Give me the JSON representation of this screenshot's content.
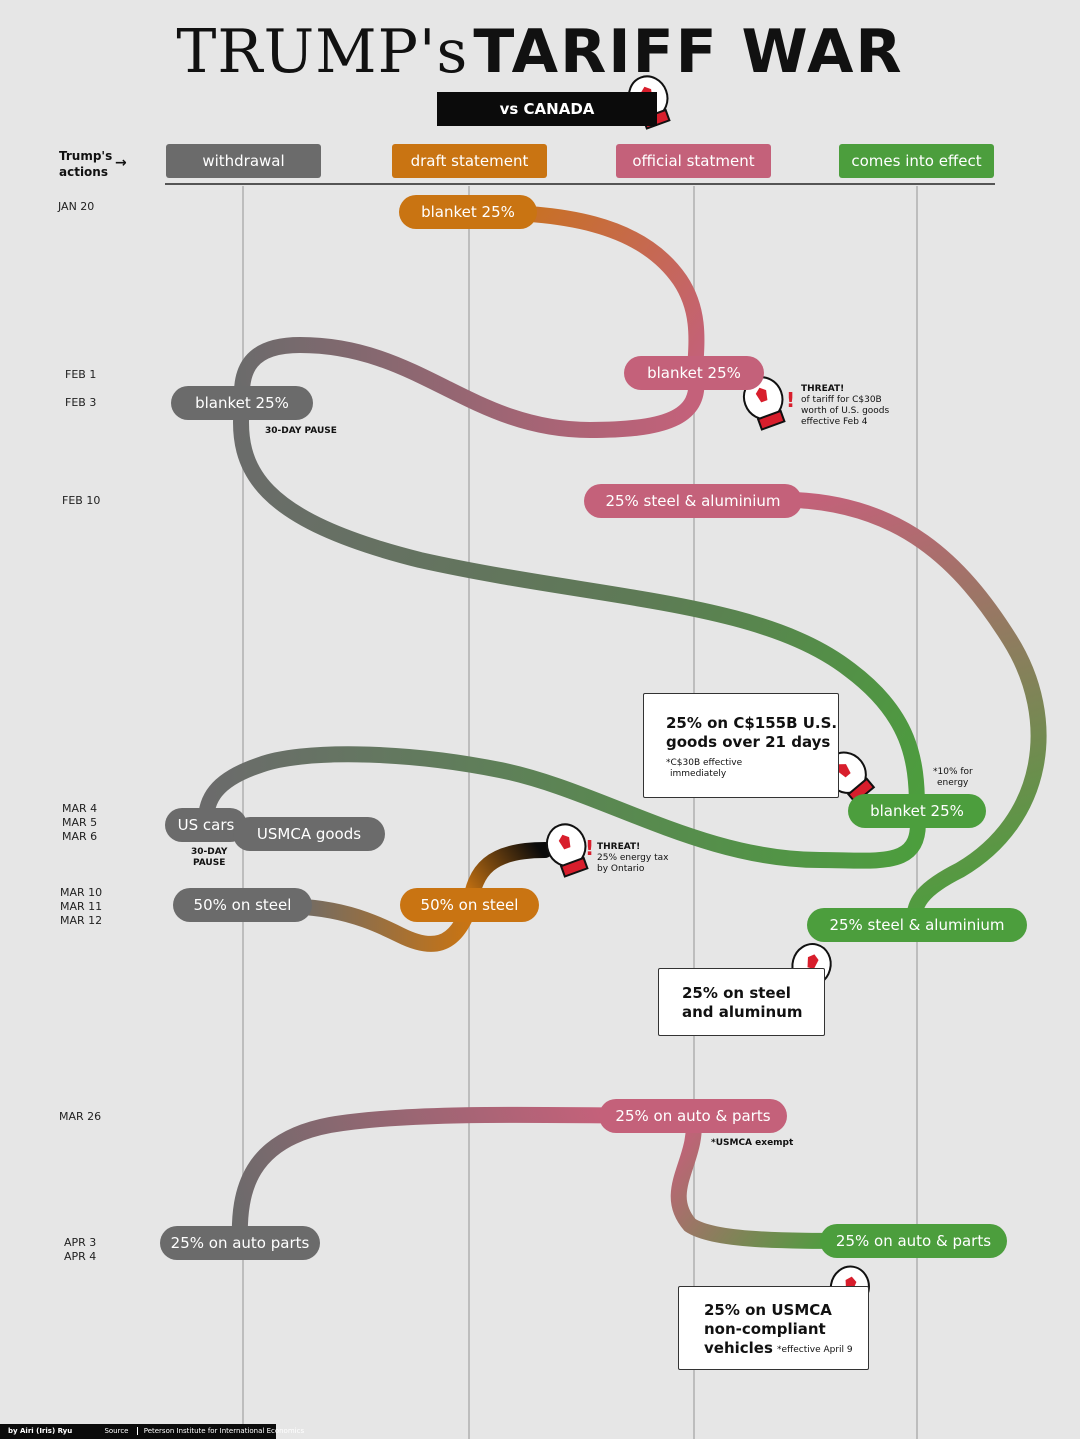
{
  "title": {
    "part1": "TRUMP's",
    "part2": "TARIFF WAR",
    "subtitle": "vs CANADA"
  },
  "legend": {
    "actions_label_1": "Trump's",
    "actions_label_2": "actions",
    "columns": [
      {
        "label": "withdrawal",
        "color": "#6b6b6b"
      },
      {
        "label": "draft statement",
        "color": "#c97412"
      },
      {
        "label": "official statment",
        "color": "#c4617a"
      },
      {
        "label": "comes into effect",
        "color": "#4c9e3d"
      }
    ]
  },
  "dates": {
    "jan20": "JAN 20",
    "feb1": "FEB 1",
    "feb3": "FEB 3",
    "feb10": "FEB 10",
    "mar4": "MAR 4",
    "mar5": "MAR 5",
    "mar6": "MAR 6",
    "mar10": "MAR 10",
    "mar11": "MAR 11",
    "mar12": "MAR 12",
    "mar26": "MAR 26",
    "apr3": "APR 3",
    "apr4": "APR 4"
  },
  "events": {
    "jan20_draft": "blanket 25%",
    "feb1_official": "blanket 25%",
    "feb3_withdrawal": "blanket 25%",
    "feb3_pause": "30-DAY PAUSE",
    "feb10_official": "25% steel & aluminium",
    "mar4_effect": "blanket 25%",
    "mar4_effect_note_1": "*10% for",
    "mar4_effect_note_2": "energy",
    "mar5_withdrawal_cars": "US cars",
    "mar6_withdrawal_usmca": "USMCA goods",
    "mar6_pause_1": "30-DAY",
    "mar6_pause_2": "PAUSE",
    "mar11_withdrawal": "50% on steel",
    "mar11_draft": "50% on steel",
    "mar12_effect": "25% steel & aluminium",
    "mar26_official": "25% on auto & parts",
    "mar26_note": "*USMCA exempt",
    "apr3_withdrawal": "25% on auto parts",
    "apr3_effect": "25% on auto & parts"
  },
  "canada": {
    "threat1": {
      "title": "THREAT!",
      "l1": "of tariff for C$30B",
      "l2": "worth of U.S. goods",
      "l3": "effective Feb 4"
    },
    "threat2": {
      "title": "THREAT!",
      "l1": "25% energy tax",
      "l2": "by Ontario"
    },
    "box1": {
      "l1": "25% on C$155B U.S.",
      "l2": "goods over 21 days",
      "n1": "*C$30B effective",
      "n2": "immediately"
    },
    "box2": {
      "l1": "25% on steel",
      "l2": "and aluminum"
    },
    "box3": {
      "l1": "25% on USMCA",
      "l2": "non-compliant",
      "l3": "vehicles",
      "note": "*effective April 9"
    }
  },
  "footer": {
    "author": "by Airi (Iris) Ryu",
    "source_label": "Source",
    "source": "Peterson Institute for International Economics"
  },
  "colors": {
    "withdrawal": "#6b6b6b",
    "draft": "#c97412",
    "official": "#c4617a",
    "effect": "#4c9e3d",
    "dark": "#0b0b0b",
    "maple": "#d81e2c"
  }
}
